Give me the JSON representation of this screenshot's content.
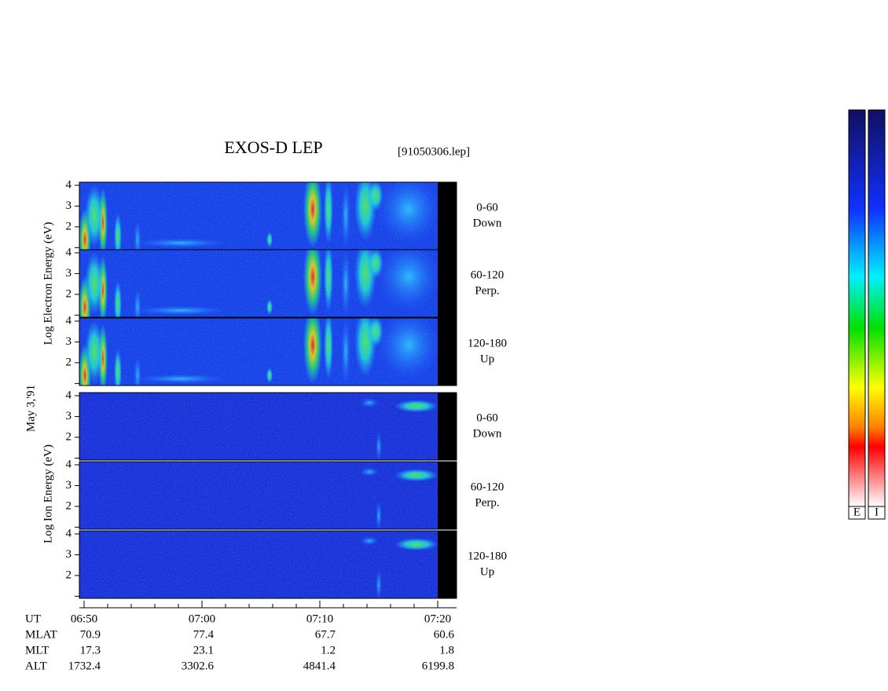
{
  "title": "EXOS-D LEP",
  "file": "[91050306.lep]",
  "date_label": "May 3,'91",
  "energy_axis": {
    "ylim": [
      0.9,
      4.15
    ],
    "yticks": [
      2,
      3,
      4
    ],
    "unlabeled_yticks": [
      1
    ]
  },
  "groups": [
    {
      "label": "Log Electron Energy (eV)",
      "panels": [
        {
          "lines": [
            "0-60",
            "Down"
          ]
        },
        {
          "lines": [
            "60-120",
            "Perp."
          ]
        },
        {
          "lines": [
            "120-180",
            "Up"
          ]
        }
      ]
    },
    {
      "label": "Log Ion Energy (eV)",
      "panels": [
        {
          "lines": [
            "0-60",
            "Down"
          ]
        },
        {
          "lines": [
            "60-120",
            "Perp."
          ]
        },
        {
          "lines": [
            "120-180",
            "Up"
          ]
        }
      ]
    }
  ],
  "time_axis": {
    "xlim": [
      409.6,
      441.6
    ],
    "xticks": [
      {
        "value": 410,
        "label": "06:50"
      },
      {
        "value": 420,
        "label": "07:00"
      },
      {
        "value": 430,
        "label": "07:10"
      },
      {
        "value": 440,
        "label": "07:20"
      }
    ],
    "minor_xticks": [
      412,
      414,
      416,
      418,
      422,
      424,
      426,
      428,
      432,
      434,
      436,
      438
    ]
  },
  "ephemeris": {
    "ut_label": "UT",
    "rows": [
      {
        "name": "MLAT",
        "values": [
          70.9,
          77.4,
          67.7,
          60.6
        ]
      },
      {
        "name": "MLT",
        "values": [
          17.3,
          23.1,
          1.2,
          1.8
        ]
      },
      {
        "name": "ALT",
        "values": [
          1732.4,
          3302.6,
          4841.4,
          6199.8
        ]
      }
    ]
  },
  "colorbar": {
    "labels": [
      "E",
      "I"
    ]
  }
}
